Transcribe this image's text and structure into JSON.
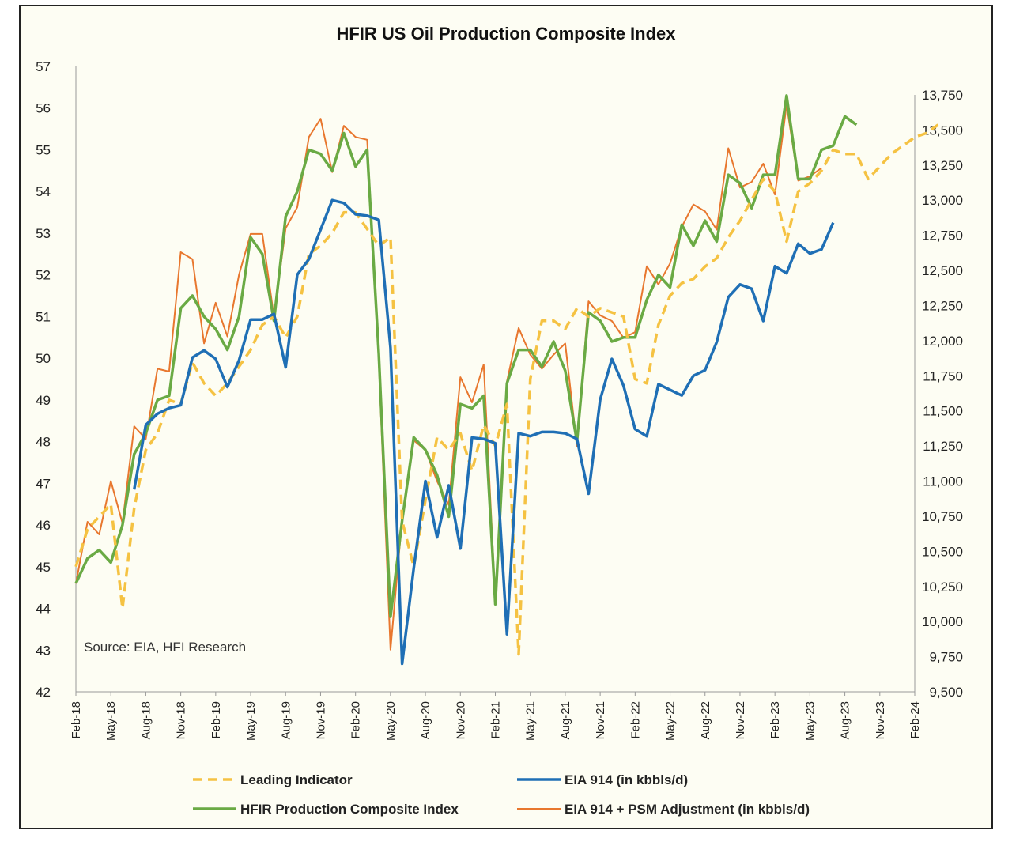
{
  "chart_data": {
    "type": "line",
    "title": "HFIR US Oil Production Composite Index",
    "source_note": "Source: EIA, HFI Research",
    "left_axis": {
      "range": [
        42,
        57
      ],
      "ticks": [
        "42",
        "43",
        "44",
        "45",
        "46",
        "47",
        "48",
        "49",
        "50",
        "51",
        "52",
        "53",
        "54",
        "55",
        "56",
        "57"
      ]
    },
    "right_axis": {
      "range": [
        9500,
        13750
      ],
      "ticks": [
        "9,500",
        "9,750",
        "10,000",
        "10,250",
        "10,500",
        "10,750",
        "11,000",
        "11,250",
        "11,500",
        "11,750",
        "12,000",
        "12,250",
        "12,500",
        "12,750",
        "13,000",
        "13,250",
        "13,500",
        "13,750"
      ]
    },
    "x_axis": {
      "start": "Feb-18",
      "end": "Feb-24",
      "tick_labels": [
        "Feb-18",
        "May-18",
        "Aug-18",
        "Nov-18",
        "Feb-19",
        "May-19",
        "Aug-19",
        "Nov-19",
        "Feb-20",
        "May-20",
        "Aug-20",
        "Nov-20",
        "Feb-21",
        "May-21",
        "Aug-21",
        "Nov-21",
        "Feb-22",
        "May-22",
        "Aug-22",
        "Nov-22",
        "Feb-23",
        "May-23",
        "Aug-23",
        "Nov-23",
        "Feb-24"
      ]
    },
    "series": [
      {
        "name": "Leading Indicator",
        "axis": "left",
        "color": "#F5C242",
        "style": "dashed",
        "values": [
          45.0,
          45.9,
          46.2,
          46.5,
          44.0,
          46.4,
          47.8,
          48.2,
          49.0,
          48.9,
          49.9,
          49.4,
          49.1,
          49.4,
          49.8,
          50.2,
          50.8,
          51.0,
          50.5,
          51.0,
          52.5,
          52.7,
          53.0,
          53.5,
          53.5,
          53.1,
          52.7,
          52.9,
          46.1,
          45.0,
          46.6,
          48.1,
          47.8,
          48.2,
          47.3,
          48.4,
          47.9,
          48.9,
          42.9,
          49.5,
          50.9,
          50.9,
          50.7,
          51.2,
          51.0,
          51.2,
          51.1,
          51.0,
          49.5,
          49.4,
          50.8,
          51.5,
          51.8,
          51.9,
          52.2,
          52.4,
          52.9,
          53.3,
          53.8,
          54.3,
          54.0,
          52.8,
          54.0,
          54.2,
          54.5,
          55.0,
          54.9,
          54.9,
          54.3,
          54.6,
          54.9,
          55.1,
          55.3,
          55.4,
          55.6
        ]
      },
      {
        "name": "EIA 914 (in kbbls/d)",
        "axis": "right",
        "color": "#1F6FB5",
        "style": "solid",
        "values": [
          null,
          null,
          null,
          null,
          null,
          10940,
          11400,
          11480,
          11520,
          11540,
          11880,
          11930,
          11870,
          11670,
          11860,
          12150,
          12150,
          12190,
          11810,
          12470,
          12580,
          12790,
          13000,
          12980,
          12900,
          12890,
          12860,
          11950,
          9700,
          10380,
          11000,
          10600,
          10970,
          10520,
          11310,
          11300,
          11270,
          9910,
          11340,
          11320,
          11350,
          11350,
          11340,
          11300,
          10910,
          11580,
          11870,
          11680,
          11370,
          11320,
          11690,
          11650,
          11610,
          11750,
          11790,
          11990,
          12310,
          12400,
          12370,
          12140,
          12530,
          12480,
          12690,
          12620,
          12650,
          12840,
          null,
          null,
          null,
          null,
          null,
          null,
          null,
          null,
          null
        ]
      },
      {
        "name": "HFIR Production Composite Index",
        "axis": "left",
        "color": "#6AAA44",
        "style": "solid",
        "values": [
          44.6,
          45.2,
          45.4,
          45.1,
          46.0,
          47.7,
          48.2,
          49.0,
          49.1,
          51.2,
          51.5,
          51.0,
          50.7,
          50.2,
          51.0,
          52.9,
          52.5,
          50.9,
          53.4,
          54.0,
          55.0,
          54.9,
          54.5,
          55.4,
          54.6,
          55.0,
          50.1,
          43.8,
          46.1,
          48.1,
          47.8,
          47.2,
          46.2,
          48.9,
          48.8,
          49.1,
          44.1,
          49.4,
          50.2,
          50.2,
          49.8,
          50.4,
          49.7,
          48.0,
          51.1,
          50.9,
          50.4,
          50.5,
          50.5,
          51.4,
          52.0,
          51.7,
          53.2,
          52.7,
          53.3,
          52.8,
          54.4,
          54.2,
          53.6,
          54.4,
          54.4,
          56.3,
          54.3,
          54.3,
          55.0,
          55.1,
          55.8,
          55.6,
          null,
          null,
          null,
          null,
          null,
          null,
          null
        ]
      },
      {
        "name": "EIA 914 + PSM Adjustment (in kbbls/d)",
        "axis": "right",
        "color": "#E8772E",
        "style": "solid",
        "values": [
          10270,
          10710,
          10620,
          11000,
          10700,
          11390,
          11300,
          11800,
          11780,
          12630,
          12580,
          11980,
          12270,
          12030,
          12470,
          12760,
          12760,
          12170,
          12800,
          12950,
          13450,
          13580,
          13200,
          13530,
          13450,
          13430,
          11850,
          9800,
          10730,
          11290,
          11220,
          11000,
          10830,
          11740,
          11560,
          11830,
          10150,
          11710,
          12090,
          11900,
          11800,
          11900,
          11980,
          11250,
          12280,
          12180,
          12140,
          12020,
          12060,
          12530,
          12400,
          12550,
          12810,
          12970,
          12920,
          12790,
          13370,
          13090,
          13130,
          13260,
          13040,
          13680,
          13140,
          13170,
          13230,
          null,
          null,
          null,
          null,
          null,
          null,
          null,
          null,
          null,
          null
        ]
      }
    ],
    "legend": {
      "position": "bottom",
      "entries": [
        "Leading Indicator",
        "EIA 914 (in kbbls/d)",
        "HFIR Production Composite Index",
        "EIA 914 + PSM Adjustment (in kbbls/d)"
      ]
    },
    "grid": false
  }
}
